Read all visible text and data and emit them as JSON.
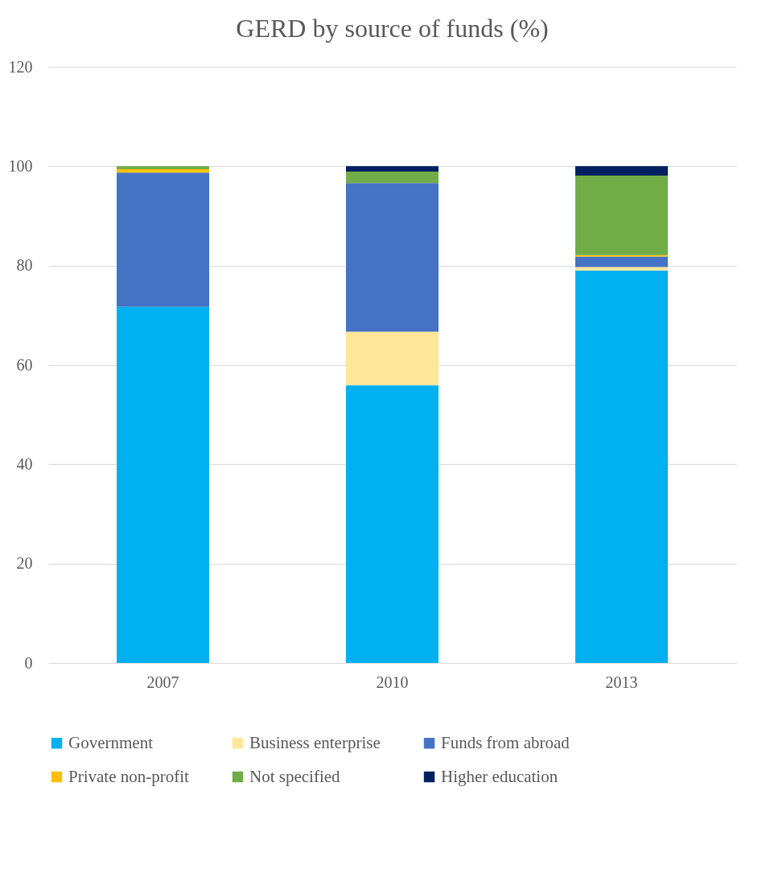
{
  "chart_data": {
    "type": "bar",
    "title": "GERD by source of funds (%)",
    "stacked": true,
    "categories": [
      "2007",
      "2010",
      "2013"
    ],
    "series": [
      {
        "name": "Government",
        "color": "#00b0f0",
        "values": [
          71.7,
          55.9,
          79.0
        ]
      },
      {
        "name": "Business enterprise",
        "color": "#ffe699",
        "values": [
          0,
          10.8,
          0.7
        ]
      },
      {
        "name": "Funds from abroad",
        "color": "#4472c4",
        "values": [
          27.0,
          29.9,
          2.1
        ]
      },
      {
        "name": "Private non-profit",
        "color": "#ffc000",
        "values": [
          0.7,
          0,
          0.3
        ]
      },
      {
        "name": "Not specified",
        "color": "#70ad47",
        "values": [
          0.6,
          2.3,
          16.0
        ]
      },
      {
        "name": "Higher education",
        "color": "#002060",
        "values": [
          0,
          1.1,
          1.9
        ]
      }
    ],
    "ylim": [
      0,
      120
    ],
    "yticks": [
      0,
      20,
      40,
      60,
      80,
      100,
      120
    ],
    "grid": "y",
    "legend": "bottom"
  }
}
